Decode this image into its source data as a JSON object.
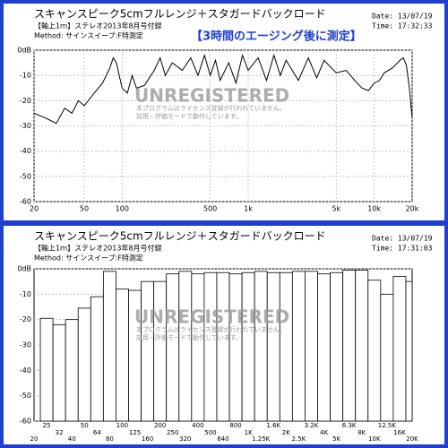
{
  "chart_data": [
    {
      "type": "line",
      "header": {
        "title": "スキャンスピーク5cmフルレンジ＋スタガードバックロード",
        "subtitle": "【軸上1ｍ】ステレオ2013年8月号付録",
        "method": "Method: サインスイープ:F特測定",
        "date": "Date: 13/07/19",
        "time": "Time: 17:32:33"
      },
      "annotation": "【3時間のエージング後に測定】",
      "watermark": [
        "UNREGISTERED",
        "本プログラムはライセンス登録が行われていません。",
        "試用・評価モードで動作しています。"
      ],
      "x": [
        20,
        25,
        30,
        35,
        40,
        45,
        50,
        60,
        70,
        80,
        85,
        90,
        100,
        110,
        120,
        130,
        150,
        180,
        200,
        220,
        250,
        300,
        350,
        400,
        450,
        500,
        550,
        600,
        700,
        800,
        900,
        1000,
        1200,
        1400,
        1600,
        1800,
        2000,
        2500,
        3000,
        3500,
        4000,
        5000,
        6000,
        7000,
        8000,
        9000,
        10000,
        11000,
        12000,
        14000,
        16000,
        17000,
        18000,
        19000,
        20000
      ],
      "values": [
        -25,
        -27,
        -29,
        -23,
        -25,
        -20,
        -22,
        -17,
        -13,
        -7,
        -3,
        -5,
        -15,
        -17,
        -10,
        -15,
        -14,
        -8,
        -3,
        -10,
        -5,
        -8,
        -3,
        -10,
        -2,
        -10,
        -4,
        -12,
        -5,
        -13,
        -2,
        -8,
        -3,
        -12,
        -2,
        -10,
        -4,
        -12,
        -3,
        -11,
        -4,
        -9,
        -8,
        -12,
        -15,
        -16,
        -13,
        -12,
        -9,
        -7,
        -4,
        -3,
        -6,
        -15,
        -27
      ],
      "color": "#000000",
      "xlim": [
        20,
        20000
      ],
      "log_x": true,
      "xticks": [
        20,
        50,
        100,
        500,
        {
          "value": 1000,
          "label": "1k"
        },
        {
          "value": 5000,
          "label": "5k"
        },
        {
          "value": 10000,
          "label": "10k"
        },
        {
          "value": 20000,
          "label": "20k"
        }
      ],
      "ylim": [
        -60,
        0
      ],
      "yticks": [
        {
          "value": 0,
          "label": "0dB"
        },
        -10,
        -20,
        -30,
        -40,
        -50,
        -60
      ],
      "grid": true
    },
    {
      "type": "bar",
      "header": {
        "title": "スキャンスピーク5cmフルレンジ＋スタガードバックロード",
        "subtitle": "【軸上1ｍ】ステレオ2013年8月号付録",
        "method": "Method: サインスイープ:F特測定",
        "date": "Date: 13/07/19",
        "time": "Time: 17:31:03"
      },
      "watermark": [
        "UNREGISTERED",
        "本プログラムはライセンス登録が行われていません。",
        "試用・評価モードで動作しています。"
      ],
      "categories": [
        "20",
        "25",
        "32",
        "40",
        "50",
        "64",
        "80",
        "100",
        "125",
        "160",
        "200",
        "250",
        "320",
        "400",
        "500",
        "640",
        "800",
        "1K",
        "1.25K",
        "1.6K",
        "2K",
        "2.5K",
        "3.2K",
        "4K",
        "5K",
        "6.3K",
        "8K",
        "10K",
        "12.5K",
        "16K",
        "20K"
      ],
      "values": [
        null,
        -19.5,
        -22,
        -20,
        -15.5,
        -11,
        -1,
        -8,
        -8.5,
        -5,
        -5,
        -2,
        -1,
        -2,
        -1.5,
        -1.5,
        -2,
        -1.5,
        -1,
        -1.5,
        -1.5,
        -1,
        -1,
        -2,
        -1.5,
        -0.5,
        -0.5,
        -4.5,
        -10,
        -3,
        -5
      ],
      "color": "#ffffff",
      "ylim": [
        -60,
        0
      ],
      "yticks": [
        {
          "value": 0,
          "label": "0dB"
        },
        -10,
        -20,
        -30,
        -40,
        -50,
        -60
      ],
      "grid": true
    }
  ]
}
